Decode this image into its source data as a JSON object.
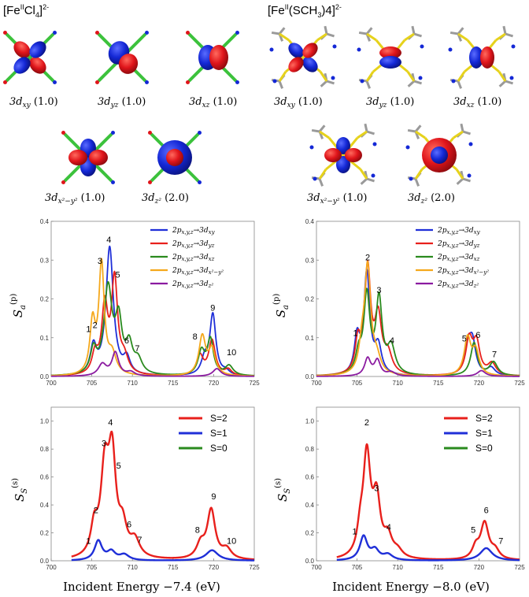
{
  "complex_titles": [
    "[Fe(II)Cl4]2-",
    "[Fe(II)(SCH3)4]2-"
  ],
  "complex_title_parts": [
    {
      "pre": "[Fe",
      "sup1": "II",
      "mid": "Cl",
      "sub": "4",
      "post": "]",
      "sup2": "2-"
    },
    {
      "pre": "[Fe",
      "sup1": "II",
      "mid": "(SCH",
      "sub": "3",
      "post": ")4]",
      "sup2": "2-"
    }
  ],
  "orbitals": {
    "left": [
      {
        "label": "3d",
        "sub": "xy",
        "occ": "(1.0)"
      },
      {
        "label": "3d",
        "sub": "yz",
        "occ": "(1.0)"
      },
      {
        "label": "3d",
        "sub": "xz",
        "occ": "(1.0)"
      },
      {
        "label": "3d",
        "sub": "x²−y²",
        "occ": "(1.0)"
      },
      {
        "label": "3d",
        "sub": "z²",
        "occ": "(2.0)"
      }
    ],
    "right": [
      {
        "label": "3d",
        "sub": "xy",
        "occ": "(1.0)"
      },
      {
        "label": "3d",
        "sub": "yz",
        "occ": "(1.0)"
      },
      {
        "label": "3d",
        "sub": "xz",
        "occ": "(1.0)"
      },
      {
        "label": "3d",
        "sub": "x²−y²",
        "occ": "(1.0)"
      },
      {
        "label": "3d",
        "sub": "z²",
        "occ": "(2.0)"
      }
    ]
  },
  "colors": {
    "blue": "#1f2fd8",
    "red": "#e8201c",
    "green": "#2a8a1e",
    "orange": "#f5a81c",
    "purple": "#8b1aa0",
    "lobe_red": "#e0151b",
    "lobe_blue": "#1428d6",
    "ligand_green": "#3cc23c",
    "bond_yellow": "#e6d21c",
    "bond_gray": "#9a9a9a"
  },
  "axis_labels": {
    "ylabel_top": "S_a^(p)",
    "ylabel_bottom": "S_S^(s)",
    "xlabel_left": "Incident Energy −7.4 (eV)",
    "xlabel_right": "Incident Energy −8.0 (eV)"
  },
  "chart_data": [
    {
      "type": "line",
      "panel": "top-left",
      "xlim": [
        700,
        725
      ],
      "ylim": [
        0,
        0.4
      ],
      "xticks": [
        "700",
        "705",
        "710",
        "715",
        "720",
        "725"
      ],
      "yticks": [
        "0.0",
        "0.1",
        "0.2",
        "0.3",
        "0.4"
      ],
      "legend_position": "top-right",
      "series": [
        {
          "name": "2p_{x,y,z}→3d_xy",
          "color": "#1f2fd8",
          "peaks": [
            [
              705.2,
              0.07,
              0.45
            ],
            [
              707.2,
              0.33,
              0.55
            ],
            [
              709.3,
              0.04,
              0.5
            ],
            [
              718.9,
              0.04,
              0.5
            ],
            [
              719.9,
              0.155,
              0.45
            ],
            [
              721.5,
              0.01,
              0.5
            ]
          ]
        },
        {
          "name": "2p_{x,y,z}→3d_yz",
          "color": "#e8201c",
          "peaks": [
            [
              705.4,
              0.05,
              0.45
            ],
            [
              706.6,
              0.17,
              0.45
            ],
            [
              707.8,
              0.24,
              0.45
            ],
            [
              709.0,
              0.04,
              0.6
            ],
            [
              718.3,
              0.05,
              0.5
            ],
            [
              719.8,
              0.09,
              0.5
            ],
            [
              721.8,
              0.015,
              0.5
            ]
          ]
        },
        {
          "name": "2p_{x,y,z}→3d_xz",
          "color": "#2a8a1e",
          "peaks": [
            [
              705.2,
              0.06,
              0.45
            ],
            [
              707.0,
              0.22,
              0.6
            ],
            [
              708.3,
              0.13,
              0.5
            ],
            [
              709.6,
              0.07,
              0.5
            ],
            [
              710.7,
              0.035,
              0.6
            ],
            [
              718.5,
              0.06,
              0.5
            ],
            [
              719.6,
              0.09,
              0.45
            ],
            [
              721.9,
              0.025,
              0.6
            ]
          ]
        },
        {
          "name": "2p_{x,y,z}→3d_{x²−y²}",
          "color": "#f5a81c",
          "peaks": [
            [
              705.1,
              0.13,
              0.4
            ],
            [
              706.2,
              0.28,
              0.4
            ],
            [
              707.5,
              0.05,
              0.6
            ],
            [
              718.6,
              0.1,
              0.5
            ],
            [
              719.8,
              0.065,
              0.5
            ]
          ]
        },
        {
          "name": "2p_{x,y,z}→3d_z²",
          "color": "#8b1aa0",
          "peaks": [
            [
              706.3,
              0.03,
              0.6
            ],
            [
              707.9,
              0.06,
              0.5
            ],
            [
              709.8,
              0.01,
              0.6
            ],
            [
              720.4,
              0.02,
              0.6
            ]
          ]
        }
      ],
      "annotations": [
        {
          "text": "1",
          "x": 704.6,
          "y": 0.115
        },
        {
          "text": "2",
          "x": 705.4,
          "y": 0.125
        },
        {
          "text": "3",
          "x": 706.0,
          "y": 0.29
        },
        {
          "text": "4",
          "x": 707.1,
          "y": 0.345
        },
        {
          "text": "5",
          "x": 708.2,
          "y": 0.255
        },
        {
          "text": "6",
          "x": 709.3,
          "y": 0.085
        },
        {
          "text": "7",
          "x": 710.6,
          "y": 0.065
        },
        {
          "text": "8",
          "x": 717.7,
          "y": 0.095
        },
        {
          "text": "9",
          "x": 719.9,
          "y": 0.17
        },
        {
          "text": "10",
          "x": 722.2,
          "y": 0.055
        }
      ]
    },
    {
      "type": "line",
      "panel": "top-right",
      "xlim": [
        700,
        725
      ],
      "ylim": [
        0,
        0.4
      ],
      "xticks": [
        "700",
        "705",
        "710",
        "715",
        "720",
        "725"
      ],
      "yticks": [
        "0.0",
        "0.1",
        "0.2",
        "0.3",
        "0.4"
      ],
      "legend_position": "top-right",
      "series": [
        {
          "name": "2p_{x,y,z}→3d_xy",
          "color": "#1f2fd8",
          "peaks": [
            [
              705.0,
              0.09,
              0.4
            ],
            [
              706.2,
              0.26,
              0.45
            ],
            [
              707.6,
              0.07,
              0.5
            ],
            [
              718.6,
              0.07,
              0.5
            ],
            [
              719.2,
              0.08,
              0.5
            ],
            [
              721.5,
              0.02,
              0.6
            ]
          ]
        },
        {
          "name": "2p_{x,y,z}→3d_yz",
          "color": "#e8201c",
          "peaks": [
            [
              705.1,
              0.08,
              0.4
            ],
            [
              706.3,
              0.27,
              0.45
            ],
            [
              707.6,
              0.14,
              0.5
            ],
            [
              708.8,
              0.05,
              0.6
            ],
            [
              718.8,
              0.09,
              0.5
            ],
            [
              719.7,
              0.08,
              0.5
            ],
            [
              721.6,
              0.03,
              0.6
            ]
          ]
        },
        {
          "name": "2p_{x,y,z}→3d_xz",
          "color": "#2a8a1e",
          "peaks": [
            [
              705.2,
              0.05,
              0.45
            ],
            [
              706.2,
              0.2,
              0.45
            ],
            [
              707.7,
              0.19,
              0.45
            ],
            [
              709.2,
              0.07,
              0.6
            ],
            [
              719.4,
              0.085,
              0.5
            ],
            [
              721.8,
              0.035,
              0.6
            ]
          ]
        },
        {
          "name": "2p_{x,y,z}→3d_{x²−y²}",
          "color": "#f5a81c",
          "peaks": [
            [
              705.6,
              0.06,
              0.45
            ],
            [
              706.3,
              0.27,
              0.45
            ],
            [
              707.4,
              0.04,
              0.6
            ],
            [
              718.6,
              0.095,
              0.5
            ],
            [
              719.6,
              0.06,
              0.5
            ]
          ]
        },
        {
          "name": "2p_{x,y,z}→3d_z²",
          "color": "#8b1aa0",
          "peaks": [
            [
              706.3,
              0.045,
              0.45
            ],
            [
              707.5,
              0.04,
              0.45
            ],
            [
              709.2,
              0.01,
              0.6
            ],
            [
              720.3,
              0.015,
              0.6
            ]
          ]
        }
      ],
      "annotations": [
        {
          "text": "1",
          "x": 704.8,
          "y": 0.105
        },
        {
          "text": "2",
          "x": 706.3,
          "y": 0.3
        },
        {
          "text": "3",
          "x": 707.7,
          "y": 0.215
        },
        {
          "text": "4",
          "x": 709.3,
          "y": 0.085
        },
        {
          "text": "5",
          "x": 718.2,
          "y": 0.09
        },
        {
          "text": "6",
          "x": 719.9,
          "y": 0.1
        },
        {
          "text": "7",
          "x": 721.9,
          "y": 0.05
        }
      ]
    },
    {
      "type": "line",
      "panel": "bottom-left",
      "xlim": [
        700,
        725
      ],
      "ylim": [
        0,
        1.1
      ],
      "xticks": [
        "700",
        "705",
        "710",
        "715",
        "720",
        "725"
      ],
      "yticks": [
        "0.0",
        "0.2",
        "0.4",
        "0.6",
        "0.8",
        "1.0"
      ],
      "legend_position": "top-right",
      "series": [
        {
          "name": "S=2",
          "color": "#e8201c",
          "peaks": [
            [
              705.3,
              0.2,
              0.5
            ],
            [
              706.6,
              0.6,
              0.6
            ],
            [
              707.5,
              0.68,
              0.55
            ],
            [
              708.8,
              0.2,
              0.6
            ],
            [
              710.3,
              0.12,
              0.7
            ],
            [
              718.4,
              0.1,
              0.6
            ],
            [
              719.7,
              0.35,
              0.6
            ],
            [
              721.6,
              0.07,
              0.7
            ]
          ]
        },
        {
          "name": "S=1",
          "color": "#1f2fd8",
          "peaks": [
            [
              705.8,
              0.14,
              0.55
            ],
            [
              707.4,
              0.06,
              0.6
            ],
            [
              709.0,
              0.04,
              0.7
            ],
            [
              719.8,
              0.075,
              0.9
            ]
          ]
        },
        {
          "name": "S=0",
          "color": "#2a8a1e",
          "peaks": []
        }
      ],
      "annotations": [
        {
          "text": "1",
          "x": 704.6,
          "y": 0.12
        },
        {
          "text": "2",
          "x": 705.5,
          "y": 0.34
        },
        {
          "text": "3",
          "x": 706.5,
          "y": 0.82
        },
        {
          "text": "4",
          "x": 707.3,
          "y": 0.97
        },
        {
          "text": "5",
          "x": 708.3,
          "y": 0.66
        },
        {
          "text": "6",
          "x": 709.6,
          "y": 0.24
        },
        {
          "text": "7",
          "x": 710.9,
          "y": 0.13
        },
        {
          "text": "8",
          "x": 718.0,
          "y": 0.2
        },
        {
          "text": "9",
          "x": 720.0,
          "y": 0.44
        },
        {
          "text": "10",
          "x": 722.2,
          "y": 0.12
        }
      ]
    },
    {
      "type": "line",
      "panel": "bottom-right",
      "xlim": [
        700,
        725
      ],
      "ylim": [
        0,
        1.1
      ],
      "xticks": [
        "700",
        "705",
        "710",
        "715",
        "720",
        "725"
      ],
      "yticks": [
        "0.0",
        "0.2",
        "0.4",
        "0.6",
        "0.8",
        "1.0"
      ],
      "legend_position": "top-right",
      "series": [
        {
          "name": "S=2",
          "color": "#e8201c",
          "peaks": [
            [
              705.4,
              0.15,
              0.45
            ],
            [
              706.2,
              0.72,
              0.55
            ],
            [
              707.4,
              0.4,
              0.55
            ],
            [
              708.8,
              0.14,
              0.6
            ],
            [
              710.0,
              0.05,
              0.7
            ],
            [
              719.6,
              0.08,
              0.5
            ],
            [
              720.7,
              0.26,
              0.6
            ],
            [
              722.0,
              0.06,
              0.6
            ]
          ]
        },
        {
          "name": "S=1",
          "color": "#1f2fd8",
          "peaks": [
            [
              705.8,
              0.17,
              0.55
            ],
            [
              707.2,
              0.07,
              0.6
            ],
            [
              708.8,
              0.04,
              0.7
            ],
            [
              720.9,
              0.09,
              0.9
            ]
          ]
        },
        {
          "name": "S=0",
          "color": "#2a8a1e",
          "peaks": []
        }
      ],
      "annotations": [
        {
          "text": "1",
          "x": 704.7,
          "y": 0.19
        },
        {
          "text": "2",
          "x": 706.2,
          "y": 0.97
        },
        {
          "text": "3",
          "x": 707.4,
          "y": 0.5
        },
        {
          "text": "4",
          "x": 708.9,
          "y": 0.22
        },
        {
          "text": "5",
          "x": 719.3,
          "y": 0.2
        },
        {
          "text": "6",
          "x": 720.9,
          "y": 0.34
        },
        {
          "text": "7",
          "x": 722.7,
          "y": 0.12
        }
      ]
    }
  ]
}
